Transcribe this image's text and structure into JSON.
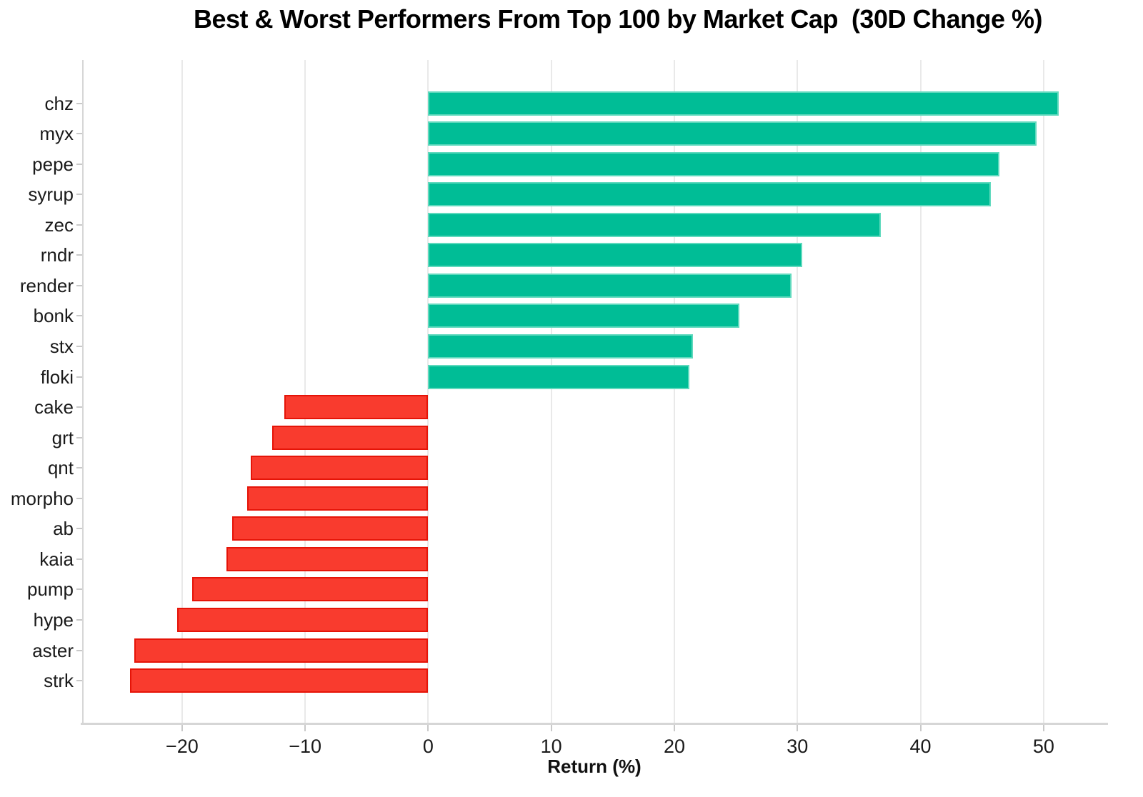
{
  "chart_data": {
    "type": "bar",
    "orientation": "horizontal",
    "title": "Best & Worst Performers From Top 100 by Market Cap  (30D Change %)",
    "xlabel": "Return (%)",
    "categories": [
      "chz",
      "myx",
      "pepe",
      "syrup",
      "zec",
      "rndr",
      "render",
      "bonk",
      "stx",
      "floki",
      "cake",
      "grt",
      "qnt",
      "morpho",
      "ab",
      "kaia",
      "pump",
      "hype",
      "aster",
      "strk"
    ],
    "values": [
      51.2,
      49.4,
      46.4,
      45.7,
      36.8,
      30.4,
      29.5,
      25.3,
      21.5,
      21.2,
      -11.7,
      -12.7,
      -14.4,
      -14.7,
      -15.9,
      -16.4,
      -19.2,
      -20.4,
      -23.9,
      -24.2
    ],
    "xlim": [
      -28,
      55
    ],
    "xticks": [
      -20,
      -10,
      0,
      10,
      20,
      30,
      40,
      50
    ],
    "xtick_labels": [
      "−20",
      "−10",
      "0",
      "10",
      "20",
      "30",
      "40",
      "50"
    ],
    "grid": true,
    "legend": false,
    "colors": {
      "positive_fill": "#00bd96",
      "positive_edge": "#5fd9bd",
      "negative_fill": "#f93b2e",
      "negative_edge": "#e51408",
      "gridline": "#e9e9e9",
      "spine": "#d6d6d6",
      "tick": "#c9c9c9",
      "text": "#1a1a1a",
      "title_text": "#000000"
    }
  }
}
